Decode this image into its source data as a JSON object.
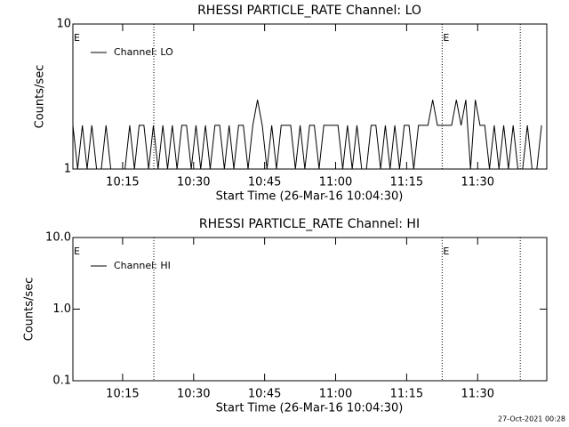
{
  "chart_data": [
    {
      "type": "line",
      "title": "RHESSI PARTICLE_RATE Channel: LO",
      "xlabel": "Start Time (26-Mar-16 10:04:30)",
      "ylabel": "Counts/sec",
      "log_y": true,
      "ylim": [
        1,
        10
      ],
      "yticks": [
        1,
        10
      ],
      "xlim": [
        604.5,
        704.6
      ],
      "xticks": [
        {
          "value": 615,
          "label": "10:15"
        },
        {
          "value": 630,
          "label": "10:30"
        },
        {
          "value": 645,
          "label": "10:45"
        },
        {
          "value": 660,
          "label": "11:00"
        },
        {
          "value": 675,
          "label": "11:15"
        },
        {
          "value": 690,
          "label": "11:30"
        }
      ],
      "vlines": [
        621.6,
        682.5,
        699
      ],
      "annotations": [
        {
          "text": "E",
          "x": 604.5
        },
        {
          "text": "E",
          "x": 682.5
        }
      ],
      "legend": "upper left",
      "x": [
        604.5,
        605.5,
        606.5,
        607.5,
        608.5,
        609.5,
        610.5,
        611.5,
        612.5,
        613.5,
        614.5,
        615.5,
        616.5,
        617.5,
        618.5,
        619.5,
        620.5,
        621.5,
        622.5,
        623.5,
        624.5,
        625.5,
        626.5,
        627.5,
        628.5,
        629.5,
        630.5,
        631.5,
        632.5,
        633.5,
        634.5,
        635.5,
        636.5,
        637.5,
        638.5,
        639.5,
        640.5,
        641.5,
        642.5,
        643.5,
        644.5,
        645.5,
        646.5,
        647.5,
        648.5,
        649.5,
        650.5,
        651.5,
        652.5,
        653.5,
        654.5,
        655.5,
        656.5,
        657.5,
        658.5,
        659.5,
        660.5,
        661.5,
        662.5,
        663.5,
        664.5,
        665.5,
        666.5,
        667.5,
        668.5,
        669.5,
        670.5,
        671.5,
        672.5,
        673.5,
        674.5,
        675.5,
        676.5,
        677.5,
        678.5,
        679.5,
        680.5,
        681.5,
        682.5,
        683.5,
        684.5,
        685.5,
        686.5,
        687.5,
        688.5,
        689.5,
        690.5,
        691.5,
        692.5,
        693.5,
        694.5,
        695.5,
        696.5,
        697.5,
        698.5,
        699.5,
        700.5,
        701.5,
        702.5,
        703.5
      ],
      "series": [
        {
          "name": "Channel: LO",
          "color": "#000000",
          "values": [
            2,
            1,
            2,
            1,
            2,
            1,
            1,
            2,
            1,
            1,
            1,
            1,
            2,
            1,
            2,
            2,
            1,
            2,
            1,
            2,
            1,
            2,
            1,
            2,
            2,
            1,
            2,
            1,
            2,
            1,
            2,
            2,
            1,
            2,
            1,
            2,
            2,
            1,
            2,
            3,
            2,
            1,
            2,
            1,
            2,
            2,
            2,
            1,
            2,
            1,
            2,
            2,
            1,
            2,
            2,
            2,
            2,
            1,
            2,
            1,
            2,
            1,
            1,
            2,
            2,
            1,
            2,
            1,
            2,
            1,
            2,
            2,
            1,
            2,
            2,
            2,
            3,
            2,
            2,
            2,
            2,
            3,
            2,
            3,
            1,
            3,
            2,
            2,
            1,
            2,
            1,
            2,
            1,
            2,
            1,
            1,
            2,
            1,
            1,
            2
          ]
        }
      ]
    },
    {
      "type": "line",
      "title": "RHESSI PARTICLE_RATE Channel: HI",
      "xlabel": "Start Time (26-Mar-16 10:04:30)",
      "ylabel": "Counts/sec",
      "log_y": true,
      "ylim": [
        0.1,
        10
      ],
      "yticks": [
        0.1,
        {
          "value": 1,
          "label": "1.0"
        },
        {
          "value": 10,
          "label": "10.0"
        }
      ],
      "xlim": [
        604.5,
        704.6
      ],
      "xticks": [
        {
          "value": 615,
          "label": "10:15"
        },
        {
          "value": 630,
          "label": "10:30"
        },
        {
          "value": 645,
          "label": "10:45"
        },
        {
          "value": 660,
          "label": "11:00"
        },
        {
          "value": 675,
          "label": "11:15"
        },
        {
          "value": 690,
          "label": "11:30"
        }
      ],
      "vlines": [
        621.6,
        682.5,
        699
      ],
      "annotations": [
        {
          "text": "E",
          "x": 604.5
        },
        {
          "text": "E",
          "x": 682.5
        }
      ],
      "legend": "upper left",
      "series": [
        {
          "name": "Channel: HI",
          "color": "#000000",
          "values": []
        }
      ]
    }
  ],
  "footer": "27-Oct-2021 00:28"
}
